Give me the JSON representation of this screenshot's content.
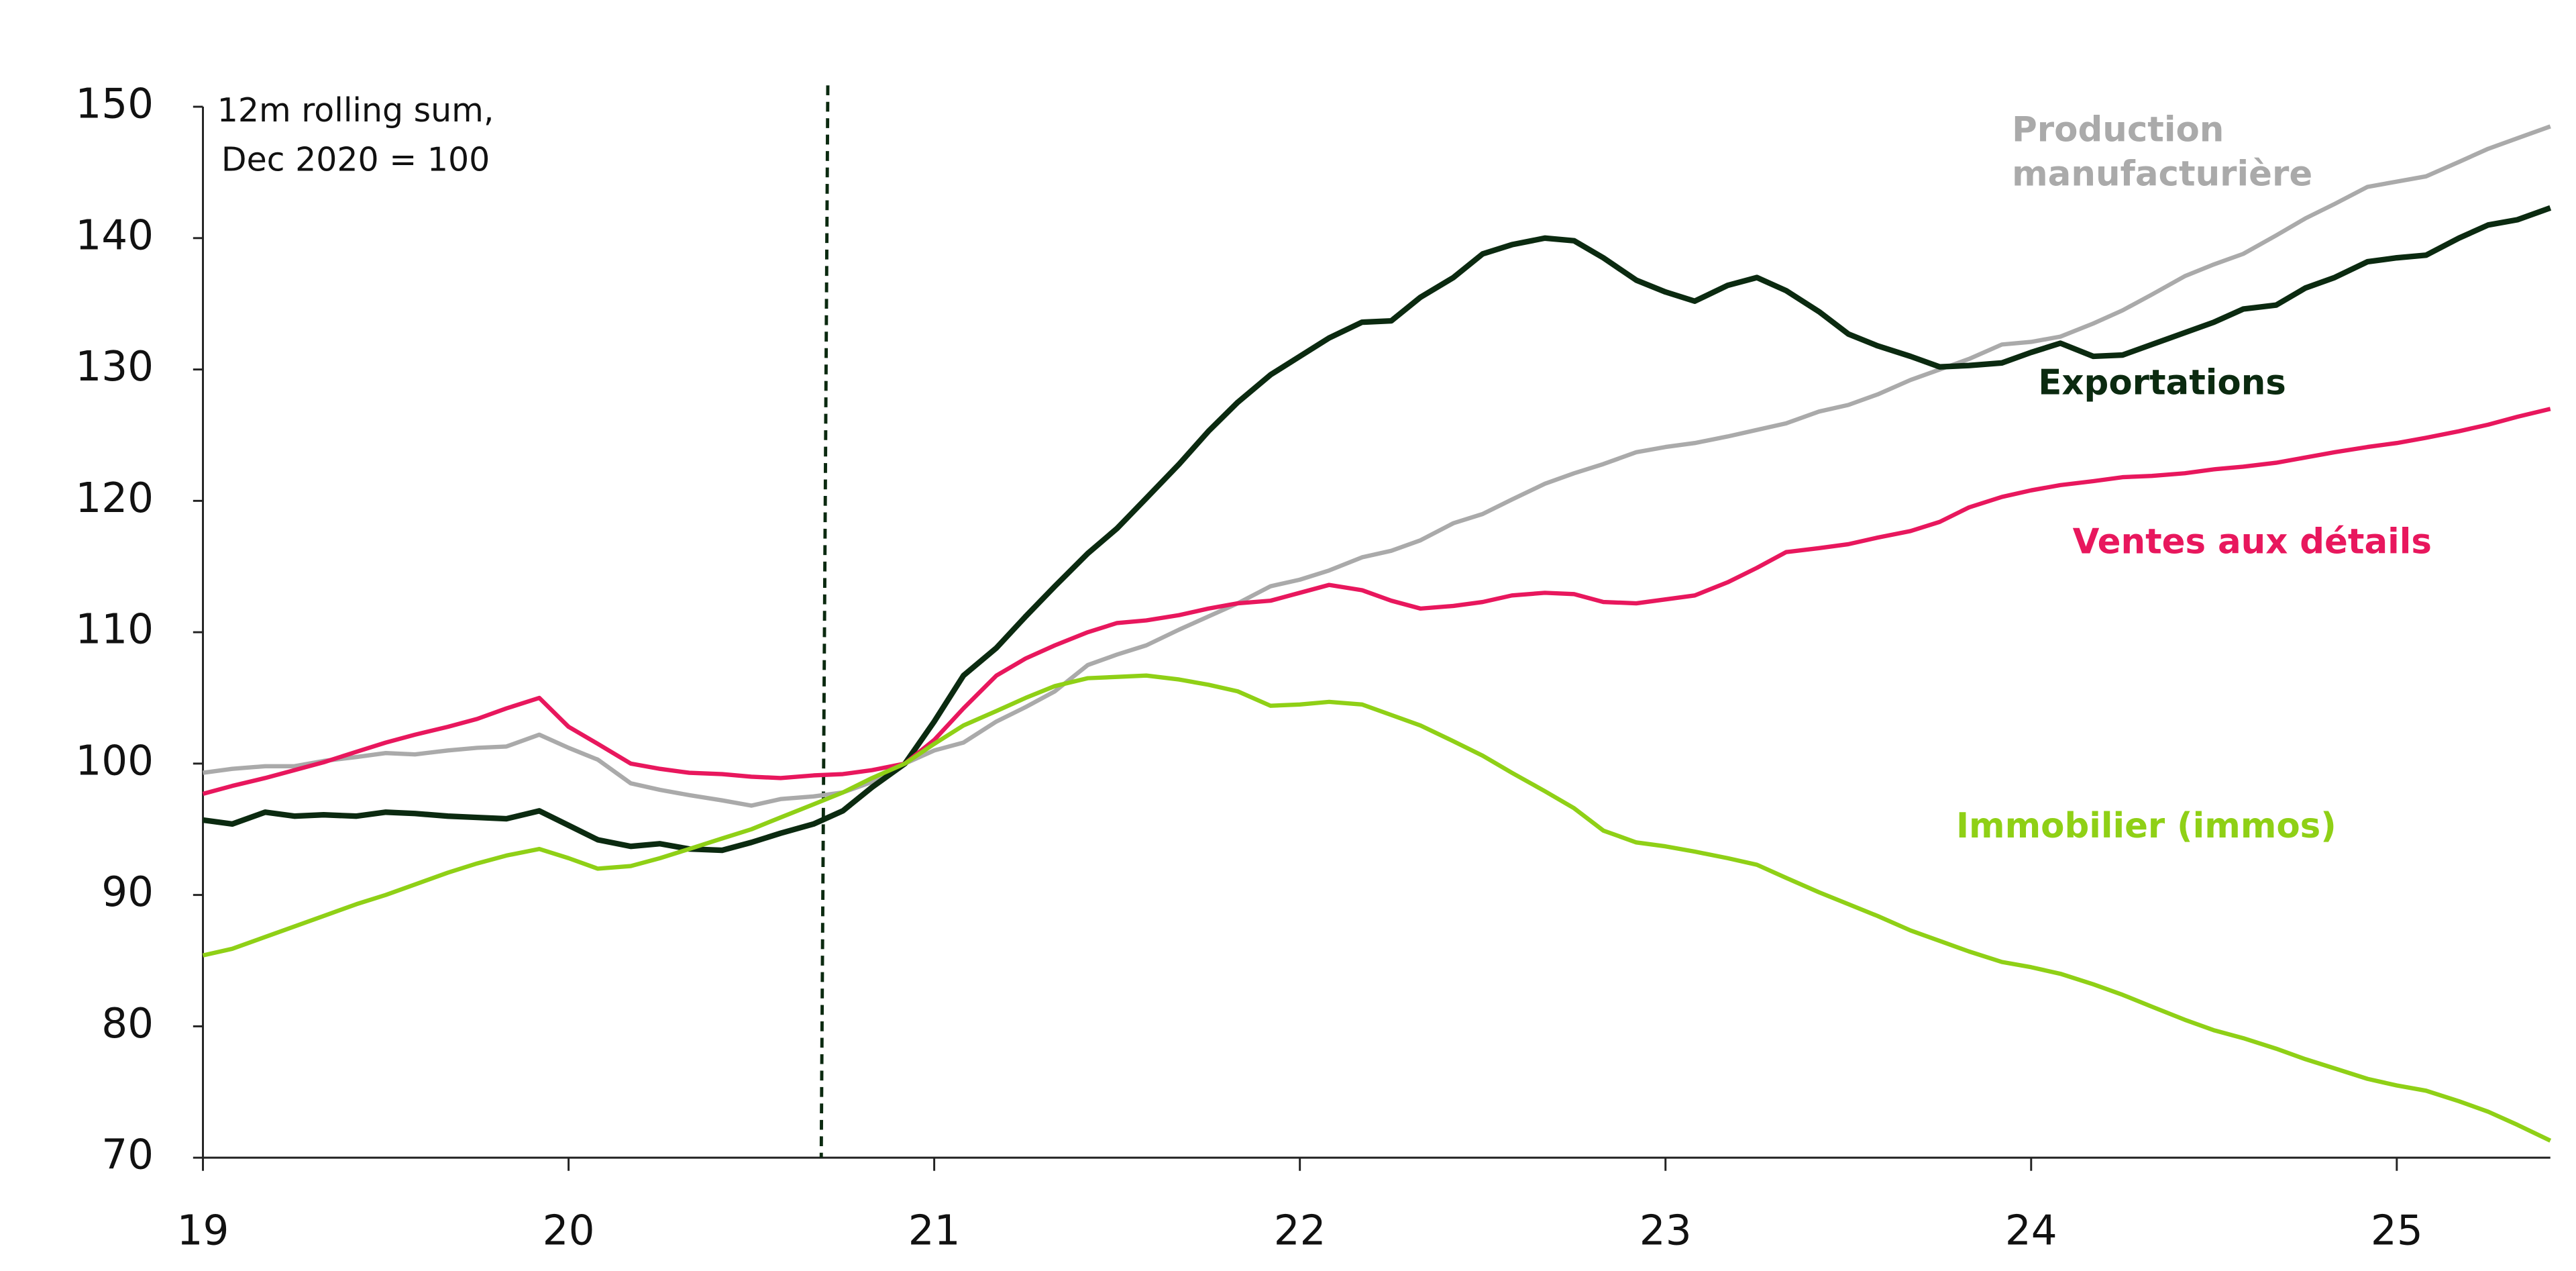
{
  "chart_data": {
    "type": "line",
    "annotation": "12m rolling sum, Dec 2020 = 100",
    "x": [
      19,
      19.08,
      19.17,
      19.25,
      19.33,
      19.42,
      19.5,
      19.58,
      19.67,
      19.75,
      19.83,
      19.92,
      20,
      20.08,
      20.17,
      20.25,
      20.33,
      20.42,
      20.5,
      20.58,
      20.67,
      20.75,
      20.83,
      20.92,
      21,
      21.08,
      21.17,
      21.25,
      21.33,
      21.42,
      21.5,
      21.58,
      21.67,
      21.75,
      21.83,
      21.92,
      22,
      22.08,
      22.17,
      22.25,
      22.33,
      22.42,
      22.5,
      22.58,
      22.67,
      22.75,
      22.83,
      22.92,
      23,
      23.08,
      23.17,
      23.25,
      23.33,
      23.42,
      23.5,
      23.58,
      23.67,
      23.75,
      23.83,
      23.92,
      24,
      24.08,
      24.17,
      24.25,
      24.33,
      24.42,
      24.5,
      24.58,
      24.67,
      24.75,
      24.83,
      24.92,
      25,
      25.08,
      25.17,
      25.25,
      25.33,
      25.42
    ],
    "series": [
      {
        "name": "Production manufacturière",
        "color": "#aaaaaa",
        "values": [
          99.3,
          99.6,
          99.8,
          99.8,
          100.2,
          100.5,
          100.8,
          100.7,
          101.0,
          101.2,
          101.3,
          102.2,
          101.2,
          100.3,
          98.5,
          98.0,
          97.6,
          97.2,
          96.8,
          97.3,
          97.5,
          97.8,
          98.6,
          100.0,
          101.0,
          101.6,
          103.2,
          104.3,
          105.5,
          107.5,
          108.3,
          109.0,
          110.2,
          111.2,
          112.2,
          113.5,
          114.0,
          114.7,
          115.7,
          116.2,
          117.0,
          118.3,
          119.0,
          120.1,
          121.3,
          122.1,
          122.8,
          123.7,
          124.1,
          124.4,
          124.9,
          125.4,
          125.9,
          126.8,
          127.3,
          128.1,
          129.2,
          130.0,
          130.8,
          131.9,
          132.1,
          132.5,
          133.5,
          134.5,
          135.7,
          137.1,
          138.0,
          138.8,
          140.2,
          141.5,
          142.6,
          143.9,
          144.3,
          144.7,
          145.8,
          146.8,
          147.6,
          148.5
        ]
      },
      {
        "name": "Exportations",
        "color": "#0b2a10",
        "values": [
          95.7,
          95.4,
          96.3,
          96.0,
          96.1,
          96.0,
          96.3,
          96.2,
          96.0,
          95.9,
          95.8,
          96.4,
          95.3,
          94.2,
          93.7,
          93.9,
          93.5,
          93.4,
          94.0,
          94.7,
          95.4,
          96.4,
          98.2,
          100.0,
          103.2,
          106.7,
          108.8,
          111.2,
          113.5,
          116.0,
          117.9,
          120.2,
          122.8,
          125.3,
          127.5,
          129.6,
          131.0,
          132.4,
          133.6,
          133.7,
          135.5,
          137.0,
          138.8,
          139.5,
          140.0,
          139.8,
          138.5,
          136.8,
          135.9,
          135.2,
          136.4,
          137.0,
          136.0,
          134.4,
          132.7,
          131.8,
          131.0,
          130.2,
          130.3,
          130.5,
          131.3,
          132.0,
          131.0,
          131.1,
          131.9,
          132.8,
          133.6,
          134.6,
          134.9,
          136.2,
          137.0,
          138.2,
          138.5,
          138.7,
          140.0,
          141.0,
          141.4,
          142.3
        ]
      },
      {
        "name": "Ventes aux détails",
        "color": "#e8175d",
        "values": [
          97.7,
          98.3,
          98.9,
          99.5,
          100.1,
          100.9,
          101.6,
          102.2,
          102.8,
          103.4,
          104.2,
          105.0,
          102.8,
          101.5,
          100.0,
          99.6,
          99.3,
          99.2,
          99.0,
          98.9,
          99.1,
          99.2,
          99.5,
          100.0,
          101.8,
          104.2,
          106.7,
          108.0,
          109.0,
          110.0,
          110.7,
          110.9,
          111.3,
          111.8,
          112.2,
          112.4,
          113.0,
          113.6,
          113.2,
          112.4,
          111.8,
          112.0,
          112.3,
          112.8,
          113.0,
          112.9,
          112.3,
          112.2,
          112.5,
          112.8,
          113.8,
          114.9,
          116.1,
          116.4,
          116.7,
          117.2,
          117.7,
          118.4,
          119.5,
          120.3,
          120.8,
          121.2,
          121.5,
          121.8,
          121.9,
          122.1,
          122.4,
          122.6,
          122.9,
          123.3,
          123.7,
          124.1,
          124.4,
          124.8,
          125.3,
          125.8,
          126.4,
          127.0
        ]
      },
      {
        "name": "Immobilier (immos)",
        "color": "#8fd016",
        "values": [
          85.4,
          85.9,
          86.8,
          87.6,
          88.4,
          89.3,
          90.0,
          90.8,
          91.7,
          92.4,
          93.0,
          93.5,
          92.8,
          92.0,
          92.2,
          92.8,
          93.5,
          94.3,
          95.0,
          95.9,
          96.9,
          97.8,
          98.9,
          100.0,
          101.5,
          102.9,
          104.0,
          105.0,
          105.9,
          106.5,
          106.6,
          106.7,
          106.4,
          106.0,
          105.5,
          104.4,
          104.5,
          104.7,
          104.5,
          103.7,
          102.9,
          101.7,
          100.6,
          99.3,
          97.9,
          96.6,
          94.9,
          94.0,
          93.7,
          93.3,
          92.8,
          92.3,
          91.3,
          90.2,
          89.3,
          88.4,
          87.3,
          86.5,
          85.7,
          84.9,
          84.5,
          84.0,
          83.2,
          82.4,
          81.5,
          80.5,
          79.7,
          79.1,
          78.3,
          77.5,
          76.8,
          76.0,
          75.5,
          75.1,
          74.3,
          73.5,
          72.5,
          71.3
        ]
      }
    ],
    "vline": 20.7,
    "xlim": [
      19,
      25.42
    ],
    "xticks": [
      19,
      20,
      21,
      22,
      23,
      24,
      25
    ],
    "ylim": [
      70,
      150
    ],
    "yticks": [
      70,
      80,
      90,
      100,
      110,
      120,
      130,
      140,
      150
    ],
    "grid": false
  }
}
